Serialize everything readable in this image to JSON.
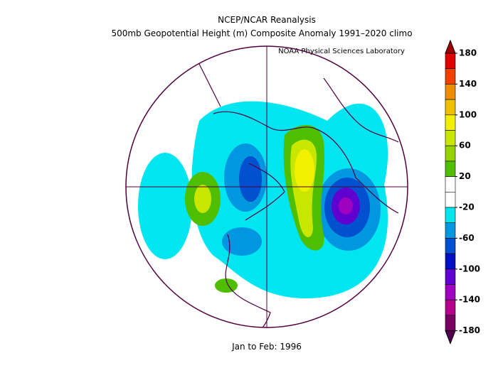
{
  "header": {
    "title": "NCEP/NCAR Reanalysis",
    "subtitle": "500mb Geopotential Height (m) Composite Anomaly 1991–2020 climo",
    "credit": "NOAA Physical Sciences Laboratory"
  },
  "colorbar": {
    "labels": [
      180,
      140,
      100,
      60,
      20,
      -20,
      -60,
      -100,
      -140,
      -180
    ],
    "colors": [
      "#a00000",
      "#e00000",
      "#f04000",
      "#f08c00",
      "#f0c000",
      "#f0f000",
      "#c8e600",
      "#96d200",
      "#50be00",
      "#ffffff",
      "#ffffff",
      "#00e6f0",
      "#0096e0",
      "#0050d0",
      "#0010c0",
      "#6000d0",
      "#a000c0",
      "#b0008c",
      "#780060",
      "#500050"
    ]
  },
  "footer": "Jan to Feb: 1996"
}
